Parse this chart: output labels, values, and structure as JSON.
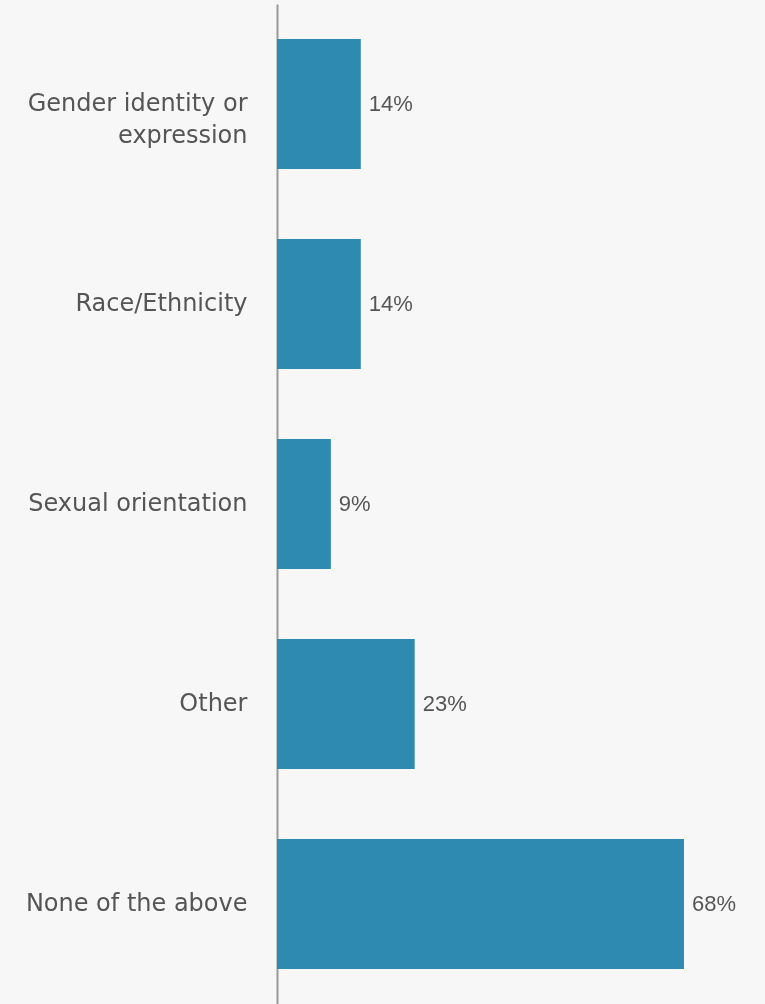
{
  "chart_data": {
    "type": "bar",
    "orientation": "horizontal",
    "categories": [
      "Gender identity or expression",
      "Race/Ethnicity",
      "Sexual orientation",
      "Other",
      "None of the above"
    ],
    "values": [
      14,
      14,
      9,
      23,
      68
    ],
    "value_labels": [
      "14%",
      "14%",
      "9%",
      "23%",
      "68%"
    ],
    "color": "#2e8ab0"
  }
}
